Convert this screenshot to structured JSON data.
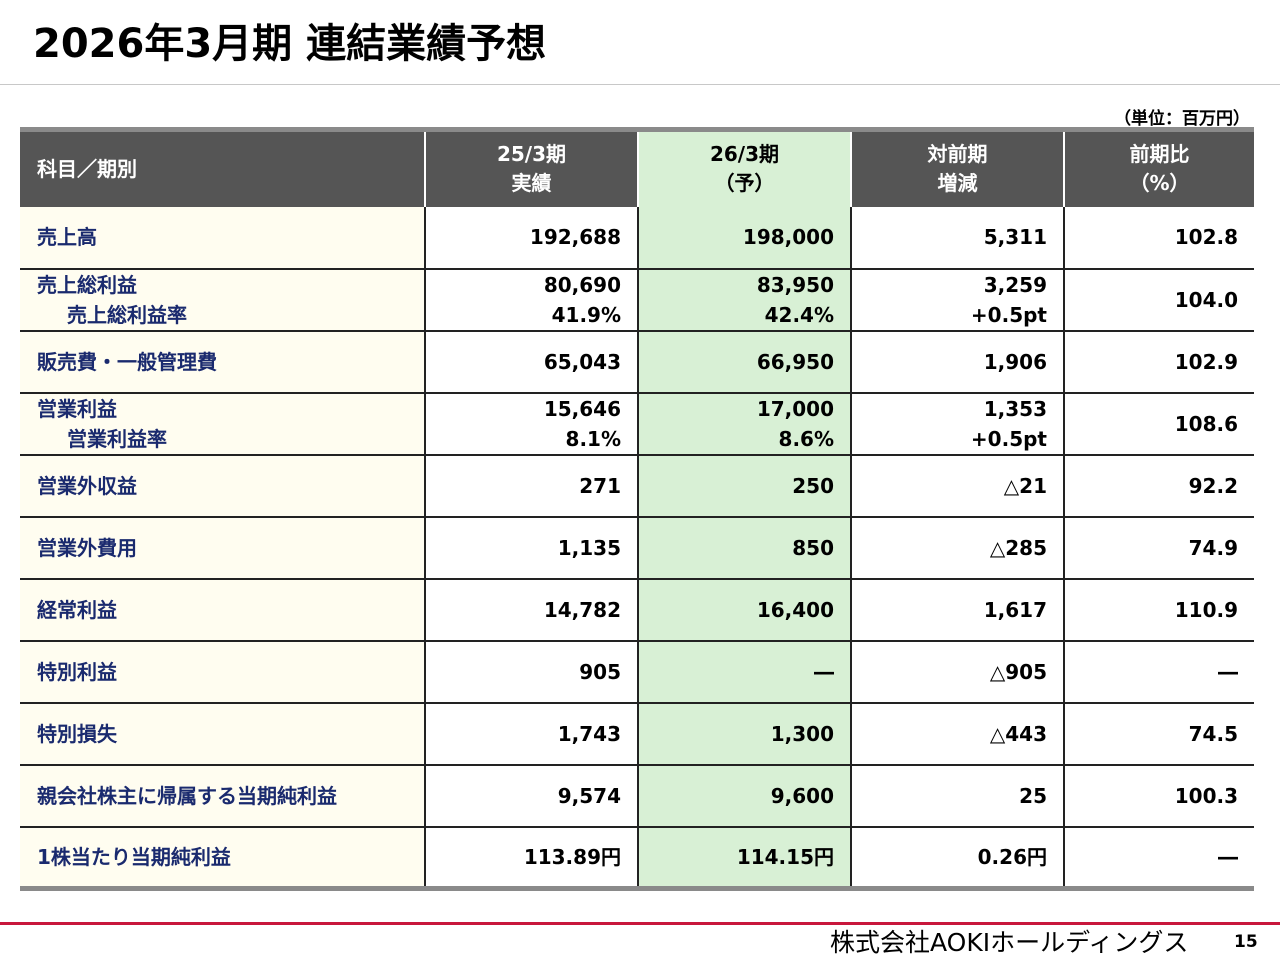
{
  "title": "2026年3月期 連結業績予想",
  "unit": "（単位：百万円）",
  "headers": {
    "col0": "科目／期別",
    "col1_line1": "25/3期",
    "col1_line2": "実績",
    "col2_line1": "26/3期",
    "col2_line2": "（予）",
    "col3_line1": "対前期",
    "col3_line2": "増減",
    "col4_line1": "前期比",
    "col4_line2": "（%）"
  },
  "rows": [
    {
      "label": "売上高",
      "prev": "192,688",
      "fcst": "198,000",
      "diff": "5,311",
      "ratio": "102.8"
    },
    {
      "label": "売上総利益",
      "sublabel": "売上総利益率",
      "prev": "80,690",
      "prev_sub": "41.9%",
      "fcst": "83,950",
      "fcst_sub": "42.4%",
      "diff": "3,259",
      "diff_sub": "+0.5pt",
      "ratio": "104.0"
    },
    {
      "label": "販売費・一般管理費",
      "prev": "65,043",
      "fcst": "66,950",
      "diff": "1,906",
      "ratio": "102.9"
    },
    {
      "label": "営業利益",
      "sublabel": "営業利益率",
      "prev": "15,646",
      "prev_sub": "8.1%",
      "fcst": "17,000",
      "fcst_sub": "8.6%",
      "diff": "1,353",
      "diff_sub": "+0.5pt",
      "ratio": "108.6"
    },
    {
      "label": "営業外収益",
      "prev": "271",
      "fcst": "250",
      "diff": "△21",
      "ratio": "92.2"
    },
    {
      "label": "営業外費用",
      "prev": "1,135",
      "fcst": "850",
      "diff": "△285",
      "ratio": "74.9"
    },
    {
      "label": "経常利益",
      "prev": "14,782",
      "fcst": "16,400",
      "diff": "1,617",
      "ratio": "110.9"
    },
    {
      "label": "特別利益",
      "prev": "905",
      "fcst": "―",
      "diff": "△905",
      "ratio": "―"
    },
    {
      "label": "特別損失",
      "prev": "1,743",
      "fcst": "1,300",
      "diff": "△443",
      "ratio": "74.5"
    },
    {
      "label": "親会社株主に帰属する当期純利益",
      "prev": "9,574",
      "fcst": "9,600",
      "diff": "25",
      "ratio": "100.3"
    },
    {
      "label": "1株当たり当期純利益",
      "prev": "113.89円",
      "fcst": "114.15円",
      "diff": "0.26円",
      "ratio": "―"
    }
  ],
  "company": "株式会社AOKIホールディングス",
  "page_number": "15",
  "colors": {
    "header_bg": "#555555",
    "highlight": "#d8f0d5",
    "label_bg": "#fffdf0",
    "label_text": "#1a2a6e",
    "footer_rule": "#c8173c"
  }
}
